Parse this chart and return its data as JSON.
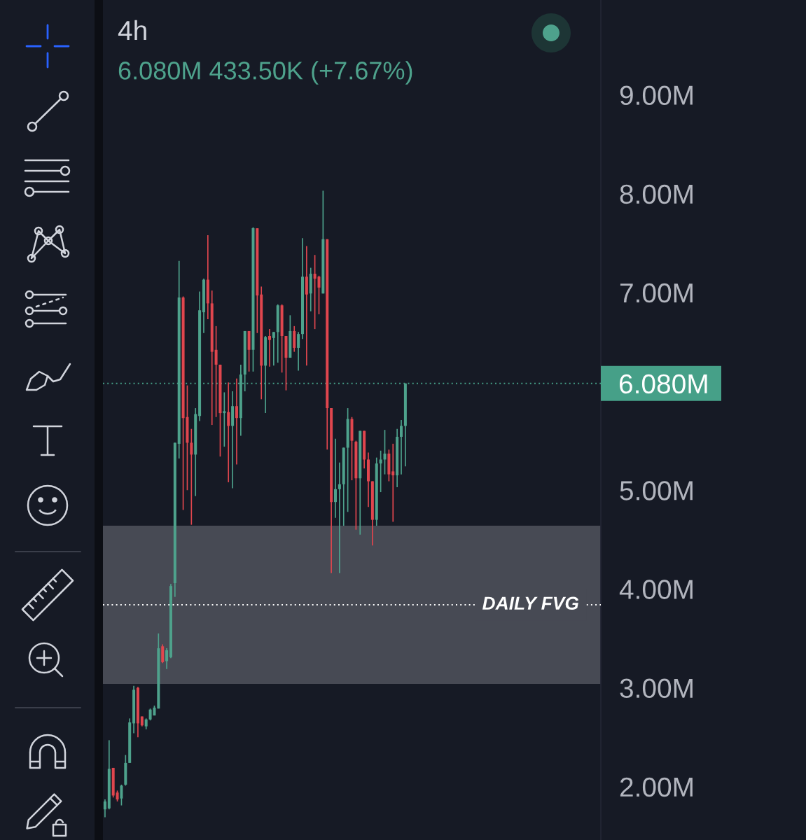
{
  "chart_data": {
    "type": "candlestick",
    "title": "4h",
    "annotations": [
      "6.080M 433.50K (+7.67%)"
    ],
    "categories": [
      null,
      null,
      null,
      null,
      null,
      null,
      null,
      null,
      null,
      null,
      null,
      null,
      null,
      null,
      null,
      null,
      null,
      null,
      null,
      null,
      null,
      null,
      null,
      null,
      null,
      null,
      null,
      null,
      null,
      null,
      null,
      null,
      null,
      null,
      null,
      null,
      null,
      null,
      null,
      null,
      null,
      null,
      null,
      null,
      null,
      null,
      null,
      null,
      null,
      null,
      null,
      null,
      null,
      null,
      null,
      null,
      null,
      null,
      null,
      null,
      null,
      null,
      null,
      null,
      null,
      null,
      null,
      null,
      null,
      null,
      null,
      null,
      null,
      null,
      null,
      null,
      null,
      null,
      null,
      null,
      null,
      null,
      null,
      null,
      null,
      null,
      null,
      null,
      null,
      null,
      null,
      null,
      null,
      null,
      null,
      null,
      null,
      null,
      null,
      null,
      null,
      null,
      null,
      null,
      null,
      null,
      null,
      null,
      null,
      null,
      null,
      null,
      null,
      null,
      null,
      null,
      null,
      null,
      null,
      null,
      null
    ],
    "ohlc": [
      [
        1.77,
        1.87,
        1.69,
        1.85
      ],
      [
        1.78,
        2.47,
        1.77,
        2.18
      ],
      [
        2.19,
        2.19,
        1.89,
        1.91
      ],
      [
        1.94,
        1.96,
        1.85,
        1.87
      ],
      [
        1.88,
        2.02,
        1.81,
        2.01
      ],
      [
        2.02,
        2.32,
        2.01,
        2.24
      ],
      [
        2.24,
        2.69,
        2.24,
        2.65
      ],
      [
        2.64,
        3.02,
        2.54,
        2.98
      ],
      [
        3.0,
        3.01,
        2.5,
        2.64
      ],
      [
        2.71,
        2.71,
        2.61,
        2.62
      ],
      [
        2.61,
        2.69,
        2.58,
        2.68
      ],
      [
        2.68,
        2.79,
        2.67,
        2.78
      ],
      [
        2.72,
        2.82,
        2.72,
        2.8
      ],
      [
        2.79,
        3.55,
        2.79,
        3.4
      ],
      [
        3.42,
        3.44,
        3.25,
        3.26
      ],
      [
        3.27,
        3.4,
        3.19,
        3.38
      ],
      [
        3.31,
        4.05,
        3.3,
        4.03
      ],
      [
        4.06,
        5.48,
        3.92,
        5.48
      ],
      [
        5.47,
        7.32,
        5.32,
        6.95
      ],
      [
        6.95,
        6.96,
        4.8,
        5.73
      ],
      [
        5.74,
        6.06,
        5.0,
        5.48
      ],
      [
        5.48,
        5.62,
        4.65,
        5.36
      ],
      [
        5.36,
        5.83,
        4.94,
        5.77
      ],
      [
        5.75,
        7.01,
        5.7,
        6.82
      ],
      [
        6.8,
        7.14,
        6.59,
        7.13
      ],
      [
        7.13,
        7.58,
        6.73,
        6.89
      ],
      [
        6.89,
        7.02,
        5.66,
        6.4
      ],
      [
        6.42,
        6.66,
        5.74,
        6.27
      ],
      [
        6.27,
        6.27,
        5.34,
        5.78
      ],
      [
        5.78,
        5.99,
        5.44,
        5.8
      ],
      [
        5.79,
        6.09,
        5.08,
        5.65
      ],
      [
        5.65,
        6.0,
        5.02,
        5.85
      ],
      [
        5.85,
        6.13,
        5.26,
        5.73
      ],
      [
        5.73,
        6.27,
        5.55,
        6.17
      ],
      [
        6.17,
        6.61,
        6.0,
        6.61
      ],
      [
        6.61,
        6.61,
        6.2,
        6.42
      ],
      [
        6.42,
        7.66,
        6.2,
        7.65
      ],
      [
        7.65,
        7.65,
        6.59,
        6.97
      ],
      [
        6.98,
        7.06,
        5.92,
        6.26
      ],
      [
        6.26,
        6.56,
        5.78,
        6.55
      ],
      [
        6.56,
        6.63,
        6.25,
        6.52
      ],
      [
        6.54,
        6.6,
        6.26,
        6.6
      ],
      [
        6.6,
        6.88,
        6.29,
        6.87
      ],
      [
        6.87,
        6.88,
        6.19,
        6.56
      ],
      [
        6.56,
        6.56,
        6.01,
        6.34
      ],
      [
        6.34,
        6.77,
        6.34,
        6.61
      ],
      [
        6.61,
        6.66,
        6.4,
        6.44
      ],
      [
        6.44,
        6.6,
        6.21,
        6.58
      ],
      [
        6.58,
        7.55,
        6.53,
        7.16
      ],
      [
        7.16,
        7.47,
        6.26,
        6.98
      ],
      [
        6.99,
        7.25,
        6.81,
        7.19
      ],
      [
        7.19,
        7.38,
        6.63,
        7.14
      ],
      [
        7.16,
        7.17,
        6.78,
        7.05
      ],
      [
        6.99,
        8.03,
        6.99,
        7.54
      ],
      [
        7.54,
        7.54,
        5.41,
        5.83
      ],
      [
        5.83,
        5.83,
        4.16,
        4.88
      ],
      [
        4.88,
        5.52,
        4.72,
        5.01
      ],
      [
        5.01,
        5.28,
        4.16,
        5.06
      ],
      [
        5.06,
        5.43,
        4.64,
        5.43
      ],
      [
        5.43,
        5.83,
        4.78,
        5.72
      ],
      [
        5.72,
        5.74,
        5.1,
        5.5
      ],
      [
        5.49,
        5.5,
        4.6,
        5.12
      ],
      [
        5.12,
        5.6,
        4.55,
        5.6
      ],
      [
        5.6,
        5.6,
        5.22,
        5.31
      ],
      [
        5.31,
        5.38,
        4.83,
        5.09
      ],
      [
        5.09,
        5.09,
        4.44,
        4.7
      ],
      [
        4.7,
        5.33,
        4.64,
        5.27
      ],
      [
        5.27,
        5.4,
        4.98,
        5.31
      ],
      [
        5.31,
        5.61,
        5.16,
        5.37
      ],
      [
        5.37,
        5.41,
        5.09,
        5.16
      ],
      [
        5.19,
        5.47,
        4.68,
        5.15
      ],
      [
        5.15,
        5.62,
        5.03,
        5.54
      ],
      [
        5.54,
        5.71,
        5.16,
        5.65
      ],
      [
        5.65,
        6.08,
        5.24,
        6.08
      ],
      null,
      null,
      null,
      null,
      null,
      null,
      null,
      null,
      null,
      null,
      null,
      null,
      null,
      null,
      null,
      null,
      null,
      null,
      null,
      null,
      null,
      null,
      null,
      null,
      null,
      null,
      null,
      null,
      null,
      null,
      null,
      null,
      null,
      null,
      null,
      null,
      null,
      null,
      null,
      null,
      null,
      null,
      null,
      null,
      null,
      null,
      null
    ],
    "colors": [
      "#4ea28c",
      "#4ea28c",
      "#e0464e",
      "#e0464e",
      "#4ea28c",
      "#4ea28c",
      "#4ea28c",
      "#4ea28c",
      "#e0464e",
      "#e0464e",
      "#4ea28c",
      "#4ea28c",
      "#4ea28c",
      "#4ea28c",
      "#e0464e",
      "#4ea28c",
      "#4ea28c",
      "#4ea28c",
      "#4ea28c",
      "#e0464e",
      "#e0464e",
      "#e0464e",
      "#4ea28c",
      "#4ea28c",
      "#4ea28c",
      "#e0464e",
      "#e0464e",
      "#e0464e",
      "#e0464e",
      "#4ea28c",
      "#e0464e",
      "#4ea28c",
      "#e0464e",
      "#4ea28c",
      "#4ea28c",
      "#e0464e",
      "#4ea28c",
      "#e0464e",
      "#e0464e",
      "#4ea28c",
      "#e0464e",
      "#4ea28c",
      "#4ea28c",
      "#e0464e",
      "#e0464e",
      "#4ea28c",
      "#e0464e",
      "#4ea28c",
      "#4ea28c",
      "#e0464e",
      "#4ea28c",
      "#e0464e",
      "#e0464e",
      "#4ea28c",
      "#e0464e",
      "#e0464e",
      "#4ea28c",
      "#4ea28c",
      "#4ea28c",
      "#4ea28c",
      "#e0464e",
      "#e0464e",
      "#4ea28c",
      "#e0464e",
      "#e0464e",
      "#e0464e",
      "#4ea28c",
      "#4ea28c",
      "#4ea28c",
      "#e0464e",
      "#e0464e",
      "#4ea28c",
      "#4ea28c",
      "#4ea28c",
      null,
      null,
      null,
      null,
      null,
      null,
      null,
      null,
      null,
      null,
      null,
      null,
      null,
      null,
      null,
      null,
      null,
      null,
      null,
      null,
      null,
      null,
      null,
      null,
      null,
      null,
      null,
      null,
      null,
      null,
      null,
      null,
      null,
      null,
      null,
      null,
      null,
      null,
      null,
      null,
      null,
      null,
      null,
      null,
      null,
      null,
      null
    ],
    "ylim": [
      1.46,
      9.96
    ],
    "yticks": [
      {
        "value": 2,
        "label": "2.00M"
      },
      {
        "value": 3,
        "label": "3.00M"
      },
      {
        "value": 4,
        "label": "4.00M"
      },
      {
        "value": 5,
        "label": "5.00M"
      },
      {
        "value": 7,
        "label": "7.00M"
      },
      {
        "value": 8,
        "label": "8.00M"
      },
      {
        "value": 9,
        "label": "9.00M"
      }
    ],
    "tick_labels": "y",
    "bands": [
      {
        "axis": "y",
        "from": 3.04,
        "to": 4.64,
        "color": "#474a54"
      }
    ],
    "ref_lines": [
      {
        "axis": "y",
        "value": 6.08,
        "label": "6.080M",
        "color": "#46a088",
        "line_style": "dotted"
      },
      {
        "axis": "y",
        "value": 3.84,
        "label": "DAILY FVG",
        "color": "#ffffff",
        "line_style": "dotted"
      }
    ]
  }
}
